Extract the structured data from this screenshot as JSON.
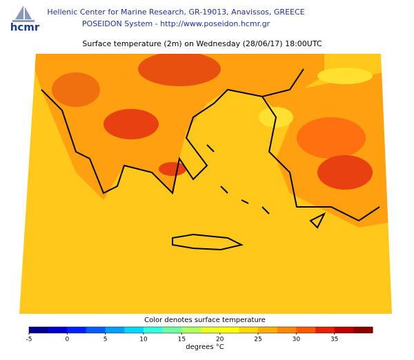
{
  "header": {
    "logo": "hcmr",
    "line1": "Hellenic Center for Marine Research, GR-19013, Anavissos, GREECE",
    "line2": "POSEIDON System - http://www.poseidon.hcmr.gr"
  },
  "title": "Surface temperature (2m) on Wednesday (28/06/17) 18:00UTC",
  "colorbar": {
    "label": "Color denotes surface temperature",
    "units": "degrees °C",
    "lim": [
      -5,
      40
    ],
    "ticks": [
      -5,
      0,
      5,
      10,
      15,
      20,
      25,
      30,
      35
    ],
    "colors": [
      "#00008f",
      "#0000cf",
      "#0020ff",
      "#0060ff",
      "#00a0ff",
      "#00d8ff",
      "#30ffe0",
      "#70ffa0",
      "#b0ff60",
      "#e8ff20",
      "#ffff00",
      "#ffd800",
      "#ffb000",
      "#ff8800",
      "#ff5800",
      "#e82000",
      "#c00000",
      "#8f0000"
    ]
  }
}
